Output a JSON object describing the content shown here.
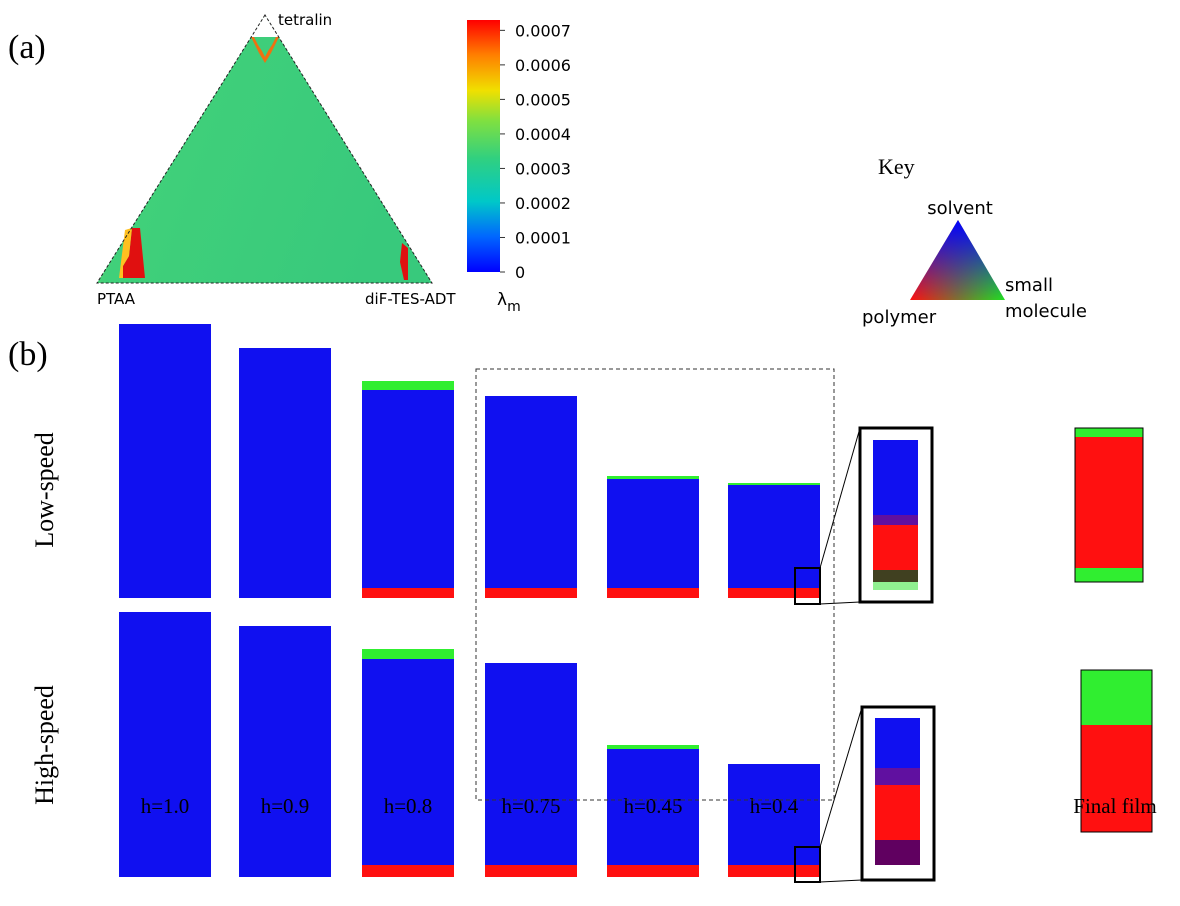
{
  "panel_a": {
    "label": "(a)",
    "vertices": {
      "top": "tetralin",
      "left": "PTAA",
      "right": "diF-TES-ADT"
    },
    "colorbar": {
      "range": [
        0,
        0.00073
      ],
      "ticks": [
        0,
        0.0001,
        0.0002,
        0.0003,
        0.0004,
        0.0005,
        0.0006,
        0.0007
      ],
      "symbol": "λ",
      "subscript": "m"
    }
  },
  "key": {
    "title": "Key",
    "top": "solvent",
    "right": [
      "small",
      "molecule"
    ],
    "left": "polymer"
  },
  "panel_b": {
    "label": "(b)",
    "rows": [
      "Low-speed",
      "High-speed"
    ],
    "columns": [
      "h=1.0",
      "h=0.9",
      "h=0.8",
      "h=0.75",
      "h=0.45",
      "h=0.4"
    ],
    "final_label": "Final film"
  }
}
